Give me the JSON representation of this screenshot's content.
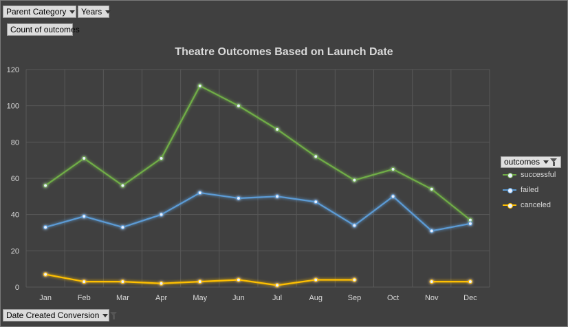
{
  "filters": {
    "parent_category": "Parent Category",
    "years": "Years",
    "values_field": "Count of outcomes",
    "date_field": "Date Created Conversion"
  },
  "colors": {
    "successful": "#70ad47",
    "failed": "#5b9bd5",
    "canceled": "#ffc000",
    "background": "#404040",
    "grid": "#595959",
    "text": "#d9d9d9"
  },
  "chart_data": {
    "type": "line",
    "title": "Theatre Outcomes Based on Launch Date",
    "xlabel": "",
    "ylabel": "",
    "categories": [
      "Jan",
      "Feb",
      "Mar",
      "Apr",
      "May",
      "Jun",
      "Jul",
      "Aug",
      "Sep",
      "Oct",
      "Nov",
      "Dec"
    ],
    "ylim": [
      0,
      120
    ],
    "yticks": [
      0,
      20,
      40,
      60,
      80,
      100,
      120
    ],
    "grid": true,
    "legend_position": "right",
    "legend_title": "outcomes",
    "series": [
      {
        "name": "successful",
        "values": [
          56,
          71,
          56,
          71,
          111,
          100,
          87,
          72,
          59,
          65,
          54,
          37
        ]
      },
      {
        "name": "failed",
        "values": [
          33,
          39,
          33,
          40,
          52,
          49,
          50,
          47,
          34,
          50,
          31,
          35
        ]
      },
      {
        "name": "canceled",
        "values": [
          7,
          3,
          3,
          2,
          3,
          4,
          1,
          4,
          4,
          null,
          3,
          3
        ]
      }
    ]
  }
}
